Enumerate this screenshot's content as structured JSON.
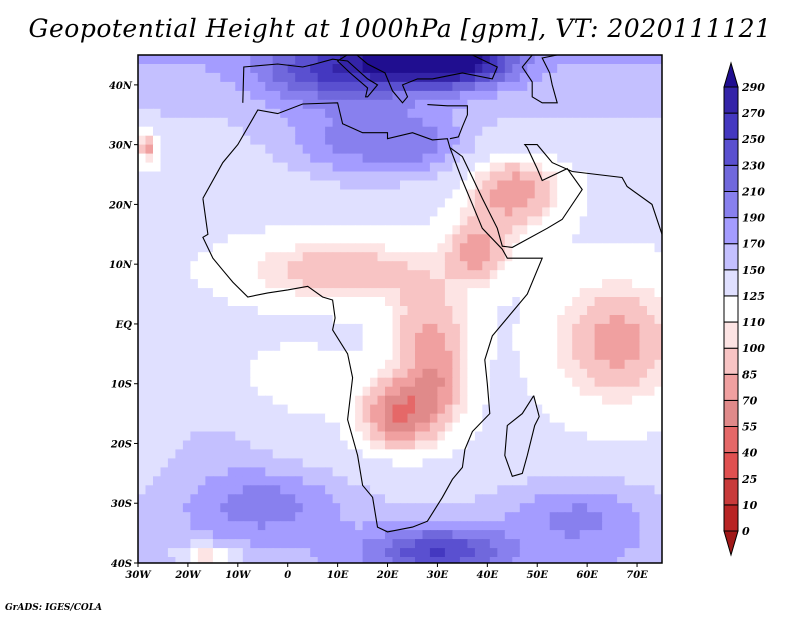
{
  "title": "Geopotential Height at 1000hPa [gpm], VT: 2020111121",
  "credit": "GrADS: IGES/COLA",
  "chart_data": {
    "type": "heatmap",
    "title": "Geopotential Height at 1000hPa [gpm], VT: 2020111121",
    "variable": "Geopotential Height",
    "level": "1000hPa",
    "units": "gpm",
    "valid_time": "2020111121",
    "xlabel": "",
    "ylabel": "",
    "xlim": [
      -30,
      75
    ],
    "ylim": [
      -40,
      45
    ],
    "x_ticks": [
      -30,
      -20,
      -10,
      0,
      10,
      20,
      30,
      40,
      50,
      60,
      70
    ],
    "x_tick_labels": [
      "30W",
      "20W",
      "10W",
      "0",
      "10E",
      "20E",
      "30E",
      "40E",
      "50E",
      "60E",
      "70E"
    ],
    "y_ticks": [
      -40,
      -30,
      -20,
      -10,
      0,
      10,
      20,
      30,
      40
    ],
    "y_tick_labels": [
      "40S",
      "30S",
      "20S",
      "10S",
      "EQ",
      "10N",
      "20N",
      "30N",
      "40N"
    ],
    "colorbar": {
      "orientation": "vertical",
      "placement": "right",
      "levels": [
        0,
        10,
        25,
        40,
        55,
        70,
        85,
        100,
        110,
        125,
        150,
        170,
        190,
        210,
        230,
        250,
        270,
        290
      ],
      "colors": [
        "#a01818",
        "#b82424",
        "#c83a3a",
        "#e05050",
        "#e56868",
        "#e08a8a",
        "#f0a0a0",
        "#f8c4c4",
        "#fde4e4",
        "#ffffff",
        "#e0e0ff",
        "#c4c0ff",
        "#a49cff",
        "#8880ee",
        "#7068dc",
        "#5a50d0",
        "#4438c0",
        "#3424a8",
        "#200e90"
      ],
      "extend": "both"
    },
    "field_description": [
      {
        "region": "Mediterranean / Turkey / Black Sea",
        "approx_value": 250
      },
      {
        "region": "Sahara / Libya / Egypt",
        "approx_value": 200
      },
      {
        "region": "Arabian Peninsula",
        "approx_value": 140
      },
      {
        "region": "Sahel / Central Africa",
        "approx_value": 95
      },
      {
        "region": "Ethiopian Highlands",
        "approx_value": 80
      },
      {
        "region": "Angola / Zambia / Namibia",
        "approx_value": 65
      },
      {
        "region": "Western Indian Ocean 0-15S 55-75E",
        "approx_value": 85
      },
      {
        "region": "South Atlantic 25-40S",
        "approx_value": 185
      },
      {
        "region": "South of South Africa / Mozambique Channel south",
        "approx_value": 215
      },
      {
        "region": "Gulf of Guinea / Equatorial Atlantic",
        "approx_value": 115
      }
    ]
  }
}
